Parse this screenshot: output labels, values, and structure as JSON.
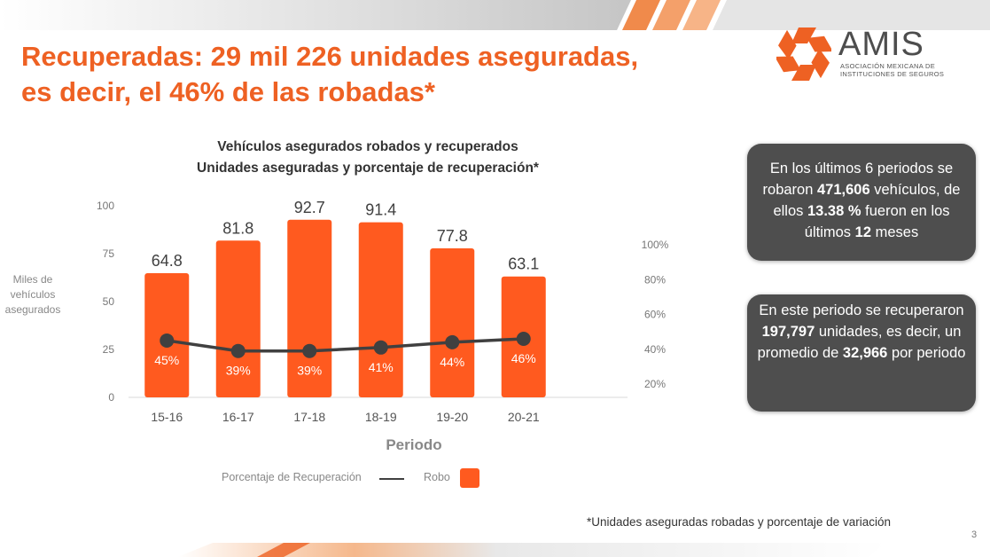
{
  "slide": {
    "title_line1": "Recuperadas: 29 mil 226 unidades aseguradas,",
    "title_line2": "es decir, el 46% de las robadas*",
    "page_number": "3",
    "footnote": "*Unidades aseguradas robadas y porcentaje de variación",
    "accent_color": "#ee6123"
  },
  "logo": {
    "name": "AMIS",
    "subtitle_line1": "Asociación Mexicana de",
    "subtitle_line2": "Instituciones de Seguros",
    "icon": "amis-logo-icon"
  },
  "info_boxes": [
    {
      "parts": [
        {
          "text": "En los últimos 6 periodos se robaron ",
          "bold": false
        },
        {
          "text": "471,606",
          "bold": true
        },
        {
          "text": "  vehículos, de ellos ",
          "bold": false
        },
        {
          "text": "13.38 %",
          "bold": true
        },
        {
          "text": " fueron en los últimos ",
          "bold": false
        },
        {
          "text": "12",
          "bold": true
        },
        {
          "text": " meses",
          "bold": false
        }
      ]
    },
    {
      "parts": [
        {
          "text": "En este periodo se recuperaron ",
          "bold": false
        },
        {
          "text": "197,797",
          "bold": true
        },
        {
          "text": " unidades, es decir, un promedio de ",
          "bold": false
        },
        {
          "text": "32,966",
          "bold": true
        },
        {
          "text": " por periodo",
          "bold": false
        }
      ]
    }
  ],
  "chart_data": {
    "type": "bar",
    "title_line1": "Vehículos asegurados robados y recuperados",
    "title_line2": "Unidades aseguradas y porcentaje de recuperación*",
    "xlabel": "Periodo",
    "ylabel": "Miles de vehículos asegurados",
    "categories": [
      "15-16",
      "16-17",
      "17-18",
      "18-19",
      "19-20",
      "20-21"
    ],
    "ylim": [
      0,
      100
    ],
    "yticks": [
      0,
      25,
      50,
      75,
      100
    ],
    "y2ticks": [
      "20%",
      "40%",
      "60%",
      "80%",
      "100%"
    ],
    "y2ticks_values": [
      20,
      40,
      60,
      80,
      100
    ],
    "y2lim": [
      0,
      100
    ],
    "series": [
      {
        "name": "Robo",
        "kind": "bar",
        "color": "#ff5a1f",
        "values": [
          64.8,
          81.8,
          92.7,
          91.4,
          77.8,
          63.1
        ],
        "labels": [
          "64.8",
          "81.8",
          "92.7",
          "91.4",
          "77.8",
          "63.1"
        ]
      },
      {
        "name": "Porcentaje de Recuperación",
        "kind": "line",
        "color": "#404040",
        "axis": "secondary",
        "values": [
          45,
          39,
          39,
          41,
          44,
          46
        ],
        "labels": [
          "45%",
          "39%",
          "39%",
          "41%",
          "44%",
          "46%"
        ]
      }
    ],
    "legend": "bottom",
    "grid": false
  }
}
